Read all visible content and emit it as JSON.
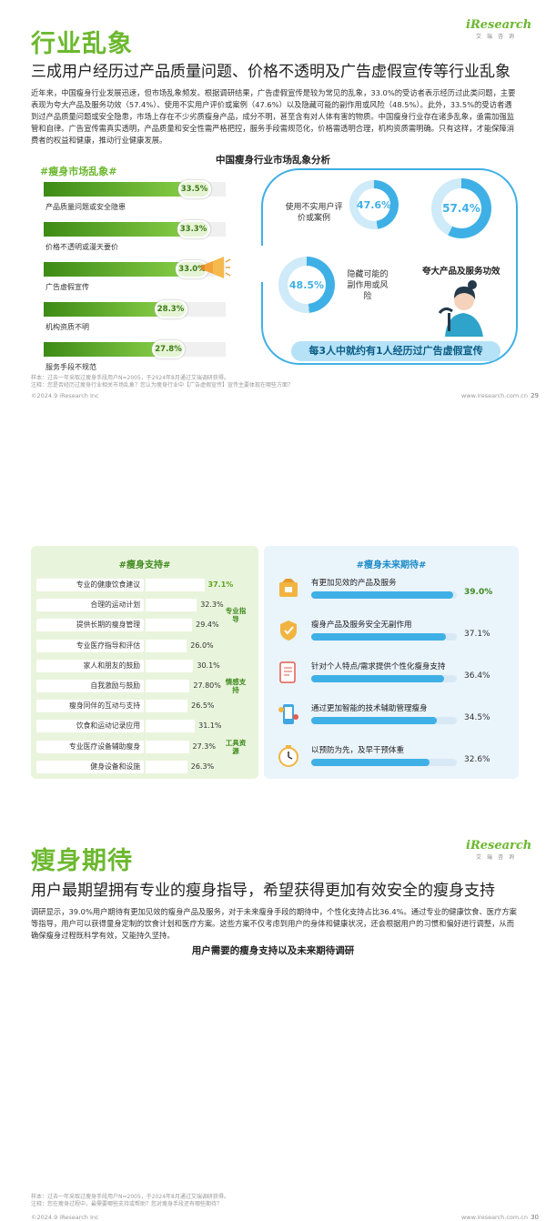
{
  "page1": {
    "title": "行业乱象",
    "logo_brand": "iResearch",
    "logo_sub": "艾瑞咨询",
    "subtitle": "三成用户经历过产品质量问题、价格不透明及广告虚假宣传等行业乱象",
    "paragraph": "近年来，中国瘦身行业发展迅速，但市场乱象频发。根据调研结果，广告虚假宣传是较为常见的乱象，33.0%的受访者表示经历过此类问题，主要表现为夸大产品及服务功效（57.4%）、使用不实用户评价或案例（47.6%）以及隐藏可能的副作用或风险（48.5%）。此外，33.5%的受访者遇到过产品质量问题或安全隐患，市场上存在不少劣质瘦身产品，成分不明，甚至含有对人体有害的物质。中国瘦身行业存在诸多乱象，亟需加强监管和自律。广告宣传需真实透明，产品质量和安全性需严格把控，服务手段需规范化，价格需透明合理，机构资质需明确。只有这样，才能保障消费者的权益和健康，推动行业健康发展。",
    "chart_title": "中国瘦身行业市场乱象分析",
    "left_heading": "#瘦身市场乱象#",
    "footnote_line1": "样本：过去一年采取过瘦身手段用户N=2005，于2024年8月通过艾瑞调研获得。",
    "footnote_line2": "注释：您是否经历过瘦身行业相关市场乱象？您认为瘦身行业中【广告虚假宣传】宣传主要体现在哪些方面？",
    "copyright": "©2024.9 iResearch Inc",
    "website": "www.iresearch.com.cn",
    "page_number": "29",
    "ad_details": [
      {
        "label": "使用不实用户评价或案例",
        "value": "47.6%",
        "pct": 47.6
      },
      {
        "label": "夸大产品及服务功效",
        "value": "57.4%",
        "pct": 57.4
      },
      {
        "label": "隐藏可能的副作用或风险",
        "value": "48.5%",
        "pct": 48.5
      }
    ],
    "banner": "每3人中就约有1人经历过广告虚假宣传"
  },
  "chart_data": [
    {
      "type": "bar",
      "categories": [
        "产品质量问题或安全隐患",
        "价格不透明或漫天要价",
        "广告虚假宣传",
        "机构资质不明",
        "服务手段不规范"
      ],
      "values": [
        33.5,
        33.3,
        33.0,
        28.3,
        27.8
      ],
      "labels": [
        "33.5%",
        "33.3%",
        "33.0%",
        "28.3%",
        "27.8%"
      ],
      "title": "中国瘦身行业市场乱象分析",
      "series_heading": "#瘦身市场乱象#"
    },
    {
      "type": "bar",
      "categories": [
        "专业的健康饮食建议",
        "合理的运动计划",
        "提供长期的瘦身管理",
        "专业医疗指导和评估",
        "家人和朋友的鼓励",
        "自我激励与鼓励",
        "瘦身同伴的互动与支持",
        "饮食和运动记录应用",
        "专业医疗设备辅助瘦身",
        "健身设备和设施"
      ],
      "values": [
        37.1,
        32.3,
        29.4,
        26.0,
        30.1,
        27.8,
        26.5,
        31.1,
        27.3,
        26.3
      ],
      "labels": [
        "37.1%",
        "32.3%",
        "29.4%",
        "26.0%",
        "30.1%",
        "27.80%",
        "26.5%",
        "31.1%",
        "27.3%",
        "26.3%"
      ],
      "groups": [
        {
          "name": "专业指导",
          "range": [
            0,
            3
          ]
        },
        {
          "name": "情感支持",
          "range": [
            4,
            6
          ]
        },
        {
          "name": "工具资源",
          "range": [
            7,
            9
          ]
        }
      ],
      "title": "用户需要的瘦身支持以及未来期待调研",
      "series_heading": "#瘦身支持#"
    },
    {
      "type": "bar",
      "categories": [
        "有更加见效的产品及服务",
        "瘦身产品及服务安全无副作用",
        "针对个人特点/需求提供个性化瘦身支持",
        "通过更加智能的技术辅助管理瘦身",
        "以预防为先，及早干预体重"
      ],
      "values": [
        39.0,
        37.1,
        36.4,
        34.5,
        32.6
      ],
      "labels": [
        "39.0%",
        "37.1%",
        "36.4%",
        "34.5%",
        "32.6%"
      ],
      "series_heading": "#瘦身未来期待#"
    }
  ],
  "page2": {
    "title": "瘦身期待",
    "logo_brand": "iResearch",
    "logo_sub": "艾瑞咨询",
    "subtitle": "用户最期望拥有专业的瘦身指导，希望获得更加有效安全的瘦身支持",
    "paragraph": "调研显示，39.0%用户期待有更加见效的瘦身产品及服务，对于未来瘦身手段的期待中，个性化支持占比36.4%。通过专业的健康饮食、医疗方案等指导，用户可以获得量身定制的饮食计划和医疗方案。这些方案不仅考虑到用户的身体和健康状况，还会根据用户的习惯和偏好进行调整，从而确保瘦身过程既科学有效，又能持久坚持。",
    "chart_title": "用户需要的瘦身支持以及未来期待调研",
    "left_heading": "#瘦身支持#",
    "right_heading": "#瘦身未来期待#",
    "footnote_line1": "样本：过去一年采取过瘦身手段用户N=2005，于2024年8月通过艾瑞调研获得。",
    "footnote_line2": "注释：您在瘦身过程中，最需要哪些支持或帮助？您对瘦身手段还有哪些期待？",
    "copyright": "©2024.9 iResearch Inc",
    "website": "www.iresearch.com.cn",
    "page_number": "30"
  },
  "colors": {
    "green": "#6cb82f",
    "dark_green": "#3d8a16",
    "blue": "#3fb0e6",
    "light_green_bg": "#e9f4dc",
    "light_blue_bg": "#eaf4fb"
  }
}
